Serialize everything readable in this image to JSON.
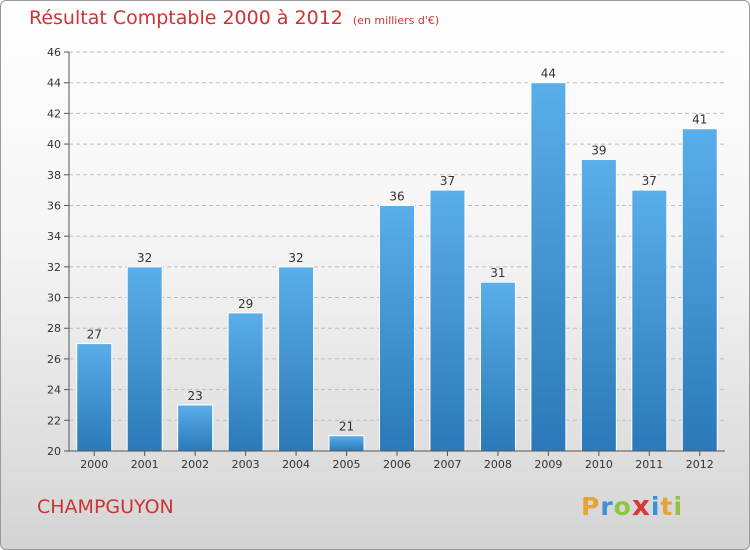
{
  "chart_data": {
    "type": "bar",
    "title": "Résultat Comptable 2000 à 2012",
    "subtitle": "(en milliers d'€)",
    "categories": [
      "2000",
      "2001",
      "2002",
      "2003",
      "2004",
      "2005",
      "2006",
      "2007",
      "2008",
      "2009",
      "2010",
      "2011",
      "2012"
    ],
    "values": [
      27,
      32,
      23,
      29,
      32,
      21,
      36,
      37,
      31,
      44,
      39,
      37,
      41
    ],
    "ylim": [
      20,
      46
    ],
    "yticks": [
      20,
      22,
      24,
      26,
      28,
      30,
      32,
      34,
      36,
      38,
      40,
      42,
      44,
      46
    ],
    "xlabel": "",
    "ylabel": "",
    "grid": true
  },
  "place_name": "CHAMPGUYON",
  "brand": {
    "letters": [
      "P",
      "r",
      "o",
      "x",
      "i",
      "t",
      "i"
    ],
    "colors": [
      "#e8a23a",
      "#3f8fd6",
      "#8fc43c",
      "#d63a3a",
      "#3f8fd6",
      "#e8a23a",
      "#8fc43c"
    ]
  },
  "colors": {
    "title": "#cc3333",
    "bar_top": "#5aaeea",
    "bar_bottom": "#2b79b8",
    "grid": "#bdbdbd"
  }
}
